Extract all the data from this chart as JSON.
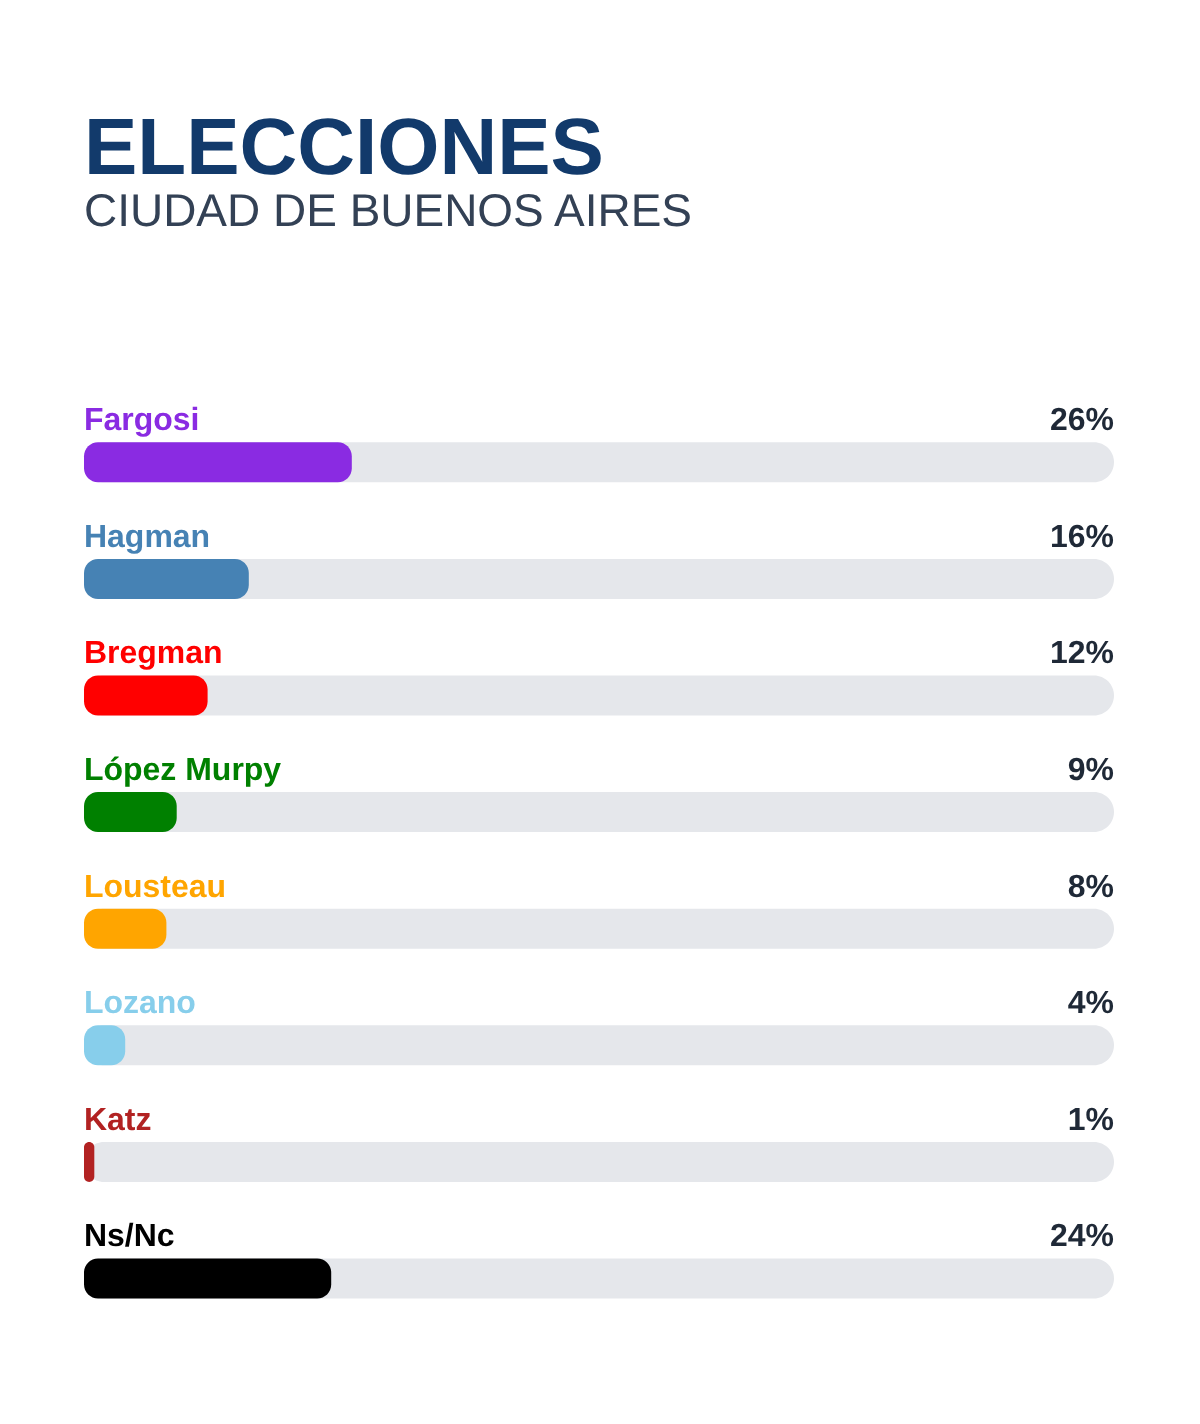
{
  "chart_data": {
    "type": "bar",
    "orientation": "horizontal",
    "title": "ELECCIONES",
    "subtitle": "CIUDAD DE BUENOS AIRES",
    "categories": [
      "Fargosi",
      "Hagman",
      "Bregman",
      "López Murpy",
      "Lousteau",
      "Lozano",
      "Katz",
      "Ns/Nc"
    ],
    "values": [
      26,
      16,
      12,
      9,
      8,
      4,
      1,
      24
    ],
    "colors": [
      "#8a2be2",
      "#4682b4",
      "#ff0000",
      "#008000",
      "#ffa500",
      "#87ceeb",
      "#b22222",
      "#000000"
    ],
    "value_labels": [
      "26%",
      "16%",
      "12%",
      "9%",
      "8%",
      "4%",
      "1%",
      "24%"
    ],
    "xlim": [
      0,
      100
    ],
    "tick_labels": false
  }
}
